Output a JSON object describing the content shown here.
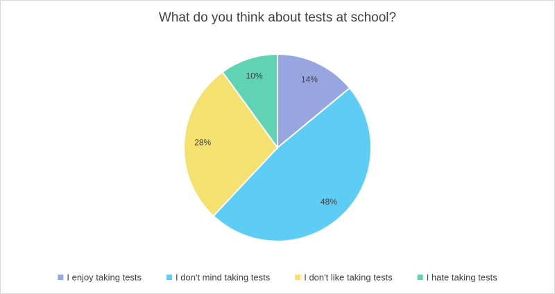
{
  "chart_data": {
    "type": "pie",
    "title": "What do you think about tests at school?",
    "categories": [
      "I enjoy taking tests",
      "I don't mind taking tests",
      "I don't like taking tests",
      "I hate taking tests"
    ],
    "values": [
      14,
      48,
      28,
      10
    ],
    "value_labels": [
      "14%",
      "48%",
      "28%",
      "10%"
    ],
    "colors": [
      "#97a6e0",
      "#5ecdf5",
      "#f5e170",
      "#5fd3b3"
    ],
    "legend": "bottom"
  }
}
